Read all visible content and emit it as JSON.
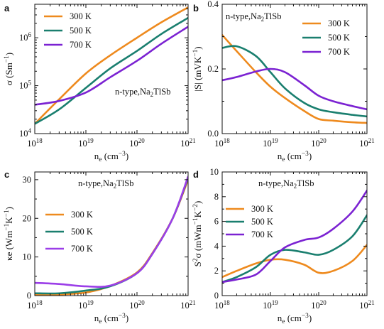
{
  "chart_data": [
    {
      "panel": "a",
      "type": "line",
      "x_scale": "log",
      "y_scale": "log",
      "xlim": [
        1e+18,
        1e+21
      ],
      "ylim": [
        10000.0,
        5000000.0
      ],
      "xlabel": "n_e (cm^-3)",
      "ylabel": "σ (Sm^-1)",
      "x_ticks": [
        "10^18",
        "10^19",
        "10^20",
        "10^21"
      ],
      "y_ticks": [
        "10^4",
        "10^5",
        "10^6"
      ],
      "annotation": "n-type,Na2TlSb",
      "legend": "top-left",
      "series": [
        {
          "name": "300 K",
          "color": "#EE8A1E",
          "x": [
            1e+18,
            3e+18,
            1e+19,
            3e+19,
            1e+20,
            3e+20,
            1e+21
          ],
          "y": [
            16000,
            52000,
            180000,
            430000,
            1000000,
            2100000,
            4300000
          ]
        },
        {
          "name": "500 K",
          "color": "#1A7F6F",
          "x": [
            1e+18,
            3e+18,
            1e+19,
            3e+19,
            1e+20,
            3e+20,
            1e+21
          ],
          "y": [
            16000,
            32000,
            90000,
            230000,
            530000,
            1200000,
            2600000
          ]
        },
        {
          "name": "700 K",
          "color": "#7B22D2",
          "x": [
            1e+18,
            3e+18,
            1e+19,
            3e+19,
            1e+20,
            3e+20,
            1e+21
          ],
          "y": [
            40000,
            48000,
            72000,
            150000,
            330000,
            750000,
            1700000
          ]
        }
      ]
    },
    {
      "panel": "b",
      "type": "line",
      "x_scale": "log",
      "y_scale": "linear",
      "xlim": [
        1e+18,
        1e+21
      ],
      "ylim": [
        0,
        0.4
      ],
      "xlabel": "n_e (cm^-3)",
      "ylabel": "|S| (mVK^-1)",
      "x_ticks": [
        "10^18",
        "10^19",
        "10^20",
        "10^21"
      ],
      "y_ticks": [
        "0.0",
        "0.2",
        "0.4"
      ],
      "annotation": "n-type,Na2TlSb",
      "legend": "top-right",
      "series": [
        {
          "name": "300 K",
          "color": "#EE8A1E",
          "x": [
            1e+18,
            2e+18,
            5e+18,
            1e+19,
            2e+19,
            5e+19,
            1e+20,
            2e+20,
            5e+20,
            1e+21
          ],
          "y": [
            0.305,
            0.255,
            0.19,
            0.145,
            0.11,
            0.07,
            0.045,
            0.04,
            0.035,
            0.033
          ]
        },
        {
          "name": "500 K",
          "color": "#1A7F6F",
          "x": [
            1e+18,
            2e+18,
            5e+18,
            1e+19,
            2e+19,
            5e+19,
            1e+20,
            2e+20,
            5e+20,
            1e+21
          ],
          "y": [
            0.265,
            0.27,
            0.24,
            0.19,
            0.14,
            0.095,
            0.075,
            0.066,
            0.058,
            0.053
          ]
        },
        {
          "name": "700 K",
          "color": "#7B22D2",
          "x": [
            1e+18,
            2e+18,
            5e+18,
            1e+19,
            2e+19,
            5e+19,
            1e+20,
            2e+20,
            5e+20,
            1e+21
          ],
          "y": [
            0.165,
            0.175,
            0.192,
            0.2,
            0.19,
            0.15,
            0.117,
            0.1,
            0.085,
            0.075
          ]
        }
      ]
    },
    {
      "panel": "c",
      "type": "line",
      "x_scale": "log",
      "y_scale": "linear",
      "xlim": [
        1e+18,
        1e+21
      ],
      "ylim": [
        0,
        32
      ],
      "xlabel": "n_e (cm^-3)",
      "ylabel": "κe (Wm^-1K^-1)",
      "x_ticks": [
        "10^18",
        "10^19",
        "10^20",
        "10^21"
      ],
      "y_ticks": [
        "0",
        "10",
        "20",
        "30"
      ],
      "annotation": "n-type,Na2TlSb",
      "legend": "center-left",
      "series": [
        {
          "name": "300 K",
          "color": "#EE8A1E",
          "x": [
            1e+18,
            3e+18,
            1e+19,
            3e+19,
            1e+20,
            2e+20,
            5e+20,
            1e+21
          ],
          "y": [
            0.2,
            0.3,
            0.8,
            2.5,
            6,
            11,
            20,
            30
          ]
        },
        {
          "name": "500 K",
          "color": "#1A7F6F",
          "x": [
            1e+18,
            3e+18,
            1e+19,
            3e+19,
            1e+20,
            2e+20,
            5e+20,
            1e+21
          ],
          "y": [
            0.6,
            0.6,
            1.3,
            2.4,
            5.8,
            10.8,
            20,
            30.5
          ]
        },
        {
          "name": "700 K",
          "color": "#9B3EE8",
          "x": [
            1e+18,
            3e+18,
            1e+19,
            3e+19,
            1e+20,
            2e+20,
            5e+20,
            1e+21
          ],
          "y": [
            3.3,
            3.0,
            2.4,
            2.6,
            5.8,
            10.8,
            20,
            30.8
          ]
        }
      ]
    },
    {
      "panel": "d",
      "type": "line",
      "x_scale": "log",
      "y_scale": "linear",
      "xlim": [
        1e+18,
        1e+21
      ],
      "ylim": [
        0,
        10
      ],
      "xlabel": "n_e (cm^-3)",
      "ylabel": "S²σ (mWm^-1K^-2)",
      "x_ticks": [
        "10^18",
        "10^19",
        "10^20",
        "10^21"
      ],
      "y_ticks": [
        "0",
        "2",
        "4",
        "6",
        "8",
        "10"
      ],
      "annotation": "n-type,Na2TlSb",
      "legend": "center-left",
      "series": [
        {
          "name": "300 K",
          "color": "#EE8A1E",
          "x": [
            1e+18,
            2e+18,
            5e+18,
            1e+19,
            2e+19,
            5e+19,
            1e+20,
            2e+20,
            5e+20,
            1e+21
          ],
          "y": [
            1.5,
            2.0,
            2.6,
            2.9,
            2.9,
            2.5,
            1.85,
            2.0,
            2.8,
            4.1
          ]
        },
        {
          "name": "500 K",
          "color": "#1A7F6F",
          "x": [
            1e+18,
            2e+18,
            5e+18,
            1e+19,
            2e+19,
            5e+19,
            1e+20,
            2e+20,
            5e+20,
            1e+21
          ],
          "y": [
            1.1,
            1.5,
            2.3,
            3.3,
            3.7,
            3.5,
            3.3,
            3.7,
            4.8,
            6.5
          ]
        },
        {
          "name": "700 K",
          "color": "#7B22D2",
          "x": [
            1e+18,
            2e+18,
            5e+18,
            1e+19,
            2e+19,
            5e+19,
            1e+20,
            2e+20,
            5e+20,
            1e+21
          ],
          "y": [
            1.1,
            1.3,
            1.7,
            2.8,
            3.9,
            4.5,
            4.7,
            5.4,
            6.8,
            8.5
          ]
        }
      ]
    }
  ]
}
